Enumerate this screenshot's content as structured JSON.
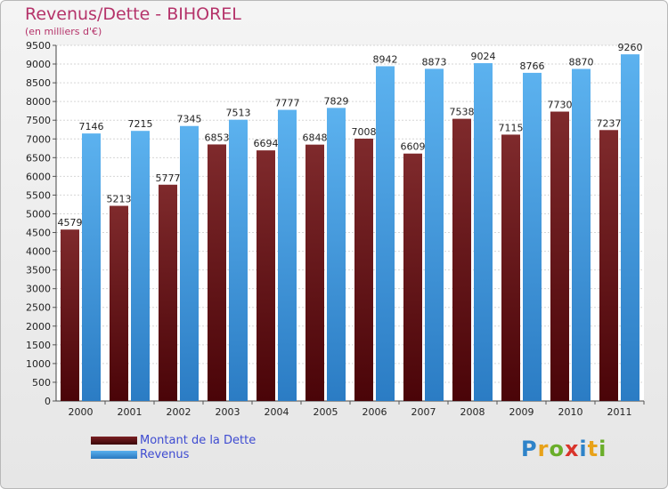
{
  "title": "Revenus/Dette - BIHOREL",
  "subtitle": "(en milliers d'€)",
  "logo_text": "Proxiti",
  "colors": {
    "dette": "#7a1f22",
    "revenus": "#4aa3e6",
    "title": "#b5336a",
    "legend_text": "#3e4bd1"
  },
  "chart_data": {
    "type": "bar",
    "title": "Revenus/Dette - BIHOREL",
    "subtitle": "(en milliers d'€)",
    "xlabel": "",
    "ylabel": "",
    "categories": [
      "2000",
      "2001",
      "2002",
      "2003",
      "2004",
      "2005",
      "2006",
      "2007",
      "2008",
      "2009",
      "2010",
      "2011"
    ],
    "series": [
      {
        "name": "Montant de la Dette",
        "values": [
          4579,
          5213,
          5777,
          6853,
          6694,
          6848,
          7008,
          6609,
          7538,
          7115,
          7730,
          7237
        ]
      },
      {
        "name": "Revenus",
        "values": [
          7146,
          7215,
          7345,
          7513,
          7777,
          7829,
          8942,
          8873,
          9024,
          8766,
          8870,
          9260
        ]
      }
    ],
    "ylim": [
      0,
      9500
    ],
    "yticks": [
      0,
      500,
      1000,
      1500,
      2000,
      2500,
      3000,
      3500,
      4000,
      4500,
      5000,
      5500,
      6000,
      6500,
      7000,
      7500,
      8000,
      8500,
      9000,
      9500
    ],
    "grid": true,
    "legend_position": "bottom-left"
  }
}
